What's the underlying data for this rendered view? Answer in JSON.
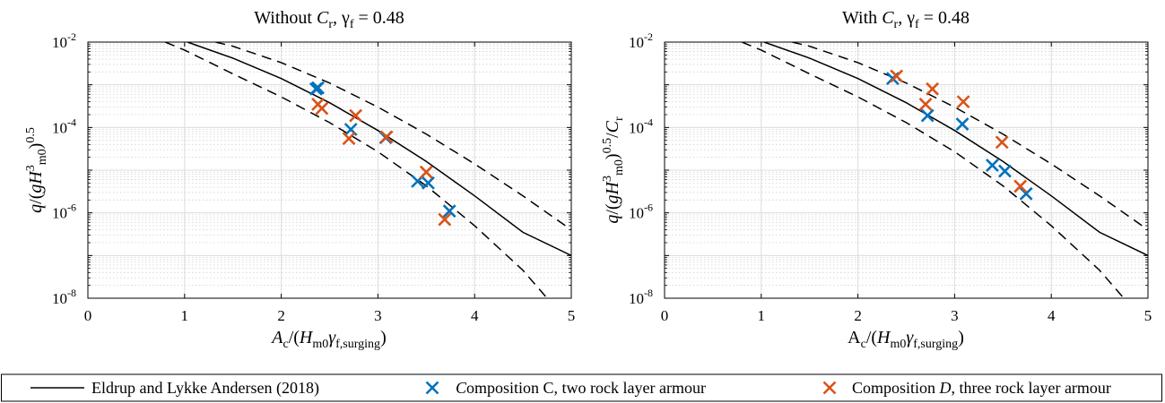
{
  "colors": {
    "series_c": "#0072BD",
    "series_d": "#D95319",
    "curve": "#000000",
    "grid": "#c8c8c8"
  },
  "legend": {
    "items": [
      {
        "label": "Eldrup and Lykke Andersen (2018)",
        "marker": "line"
      },
      {
        "label": "Composition C, two rock layer armour",
        "marker": "x"
      },
      {
        "label": "Composition D, three rock layer armour",
        "marker": "x"
      }
    ]
  },
  "chart_data": [
    {
      "type": "scatter",
      "title_text": "Without C",
      "title_sub1": "r",
      "title_sep": ", γ",
      "title_sub2": "f",
      "title_value": " = 0.48",
      "xlabel_text": "A",
      "xlabel_sub1": "c",
      "xlabel_mid": "/(H",
      "xlabel_sub2": "m0",
      "xlabel_gamma": "γ",
      "xlabel_sub3": "f,surging",
      "xlabel_close": ")",
      "ylabel_text": "q/(gH",
      "ylabel_sup": "3",
      "ylabel_sub": "m0",
      "ylabel_close": ")",
      "ylabel_sup2": "0.5",
      "ylabel_tail": "",
      "ylabel_tail_sub": "",
      "xlim": [
        0,
        5
      ],
      "ylim": [
        1e-08,
        0.01
      ],
      "yscale": "log",
      "xticks": [
        "0",
        "1",
        "2",
        "3",
        "4",
        "5"
      ],
      "yticks": [
        {
          "base": "10",
          "exp": "-8"
        },
        {
          "base": "10",
          "exp": "-6"
        },
        {
          "base": "10",
          "exp": "-4"
        },
        {
          "base": "10",
          "exp": "-2"
        }
      ],
      "grid": true,
      "series": [
        {
          "name": "Composition C, two rock layer armour",
          "x": [
            2.36,
            2.38,
            2.72,
            3.08,
            3.41,
            3.52,
            3.74
          ],
          "y": [
            0.0008,
            0.00085,
            9e-05,
            5.8e-05,
            5.5e-06,
            5e-06,
            1.1e-06
          ]
        },
        {
          "name": "Composition D, three rock layer armour",
          "x": [
            2.38,
            2.42,
            2.77,
            2.7,
            3.09,
            3.5,
            3.69
          ],
          "y": [
            0.00035,
            0.00028,
            0.00019,
            5.5e-05,
            6e-05,
            9e-06,
            7e-07
          ]
        }
      ],
      "curves": [
        {
          "name": "Eldrup and Lykke Andersen (2018)",
          "style": "solid",
          "x": [
            1.03,
            1.5,
            2.0,
            2.5,
            3.0,
            3.5,
            4.0,
            4.5,
            5.0
          ],
          "y": [
            0.01,
            0.0042,
            0.0014,
            0.00038,
            8.5e-05,
            1.6e-05,
            2.5e-06,
            3.5e-07,
            1e-07
          ]
        },
        {
          "name": "",
          "style": "dashed",
          "x": [
            1.32,
            1.5,
            2.0,
            2.5,
            3.0,
            3.5,
            4.0,
            4.5,
            5.0
          ],
          "y": [
            0.01,
            0.008,
            0.0033,
            0.0011,
            0.0003,
            7e-05,
            1.4e-05,
            2.5e-06,
            4e-07
          ]
        },
        {
          "name": "",
          "style": "dashed",
          "x": [
            0.8,
            1.0,
            1.5,
            2.0,
            2.5,
            3.0,
            3.5,
            4.0,
            4.5,
            4.75
          ],
          "y": [
            0.01,
            0.0065,
            0.0018,
            0.00052,
            0.00013,
            2.7e-05,
            4.3e-06,
            5e-07,
            4.5e-08,
            1e-08
          ]
        }
      ]
    },
    {
      "type": "scatter",
      "title_text": "With C",
      "title_sub1": "r",
      "title_sep": ", γ",
      "title_sub2": "f",
      "title_value": " = 0.48",
      "xlabel_text": "A",
      "xlabel_sub1": "c",
      "xlabel_mid": "/(H",
      "xlabel_sub2": "m0",
      "xlabel_gamma": "γ",
      "xlabel_sub3": "f,surging",
      "xlabel_close": ")",
      "ylabel_text": "q/(gH",
      "ylabel_sup": "3",
      "ylabel_sub": "m0",
      "ylabel_close": ")",
      "ylabel_sup2": "0.5",
      "ylabel_tail": "/C",
      "ylabel_tail_sub": "r",
      "xlim": [
        0,
        5
      ],
      "ylim": [
        1e-08,
        0.01
      ],
      "yscale": "log",
      "xticks": [
        "0",
        "1",
        "2",
        "3",
        "4",
        "5"
      ],
      "yticks": [
        {
          "base": "10",
          "exp": "-8"
        },
        {
          "base": "10",
          "exp": "-6"
        },
        {
          "base": "10",
          "exp": "-4"
        },
        {
          "base": "10",
          "exp": "-2"
        }
      ],
      "grid": true,
      "series": [
        {
          "name": "Composition C, two rock layer armour",
          "x": [
            2.36,
            2.72,
            3.08,
            3.39,
            3.52,
            3.74
          ],
          "y": [
            0.0014,
            0.00019,
            0.00012,
            1.3e-05,
            9.5e-06,
            2.8e-06
          ]
        },
        {
          "name": "Composition D, three rock layer armour",
          "x": [
            2.4,
            2.77,
            2.7,
            3.09,
            3.49,
            3.68
          ],
          "y": [
            0.0016,
            0.0008,
            0.00035,
            0.0004,
            4.5e-05,
            4.2e-06
          ]
        }
      ],
      "curves": [
        {
          "name": "Eldrup and Lykke Andersen (2018)",
          "style": "solid",
          "x": [
            1.03,
            1.5,
            2.0,
            2.5,
            3.0,
            3.5,
            4.0,
            4.5,
            5.0
          ],
          "y": [
            0.01,
            0.0042,
            0.0014,
            0.00038,
            8.5e-05,
            1.6e-05,
            2.5e-06,
            3.5e-07,
            1e-07
          ]
        },
        {
          "name": "",
          "style": "dashed",
          "x": [
            1.32,
            1.5,
            2.0,
            2.5,
            3.0,
            3.5,
            4.0,
            4.5,
            5.0
          ],
          "y": [
            0.01,
            0.008,
            0.0033,
            0.0011,
            0.0003,
            7e-05,
            1.4e-05,
            2.5e-06,
            4e-07
          ]
        },
        {
          "name": "",
          "style": "dashed",
          "x": [
            0.8,
            1.0,
            1.5,
            2.0,
            2.5,
            3.0,
            3.5,
            4.0,
            4.5,
            4.75
          ],
          "y": [
            0.01,
            0.0065,
            0.0018,
            0.00052,
            0.00013,
            2.7e-05,
            4.3e-06,
            5e-07,
            4.5e-08,
            1e-08
          ]
        }
      ]
    }
  ]
}
